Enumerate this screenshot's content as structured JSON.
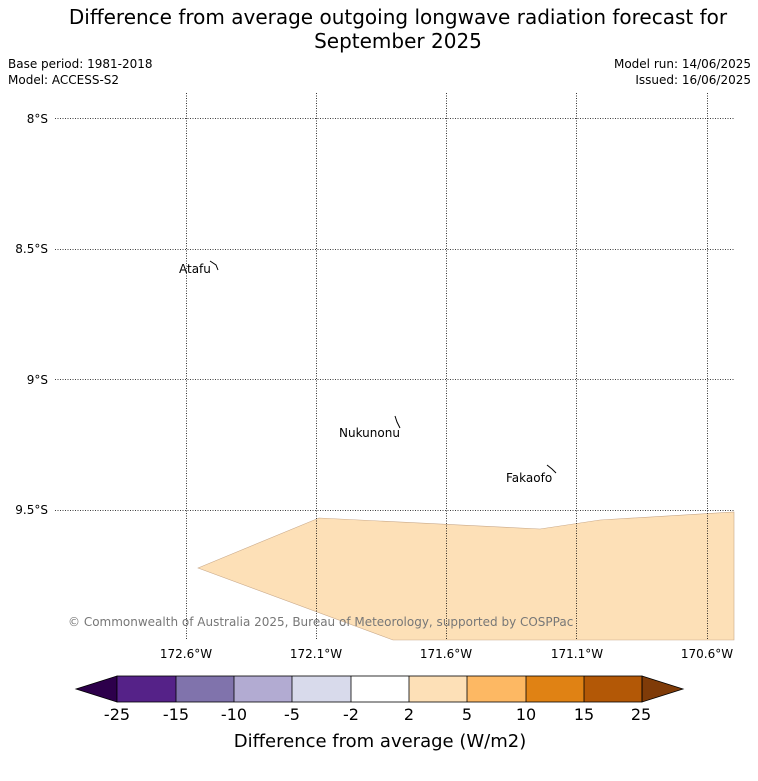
{
  "header": {
    "title_line1": "Difference from average outgoing longwave radiation forecast for",
    "title_line2": "September 2025",
    "base_period": "Base period: 1981-2018",
    "model": "Model: ACCESS-S2",
    "model_run": "Model run: 14/06/2025",
    "issued": "Issued: 16/06/2025"
  },
  "map": {
    "lat_ticks": [
      {
        "value": -8.0,
        "label": "8°S"
      },
      {
        "value": -8.5,
        "label": "8.5°S"
      },
      {
        "value": -9.0,
        "label": "9°S"
      },
      {
        "value": -9.5,
        "label": "9.5°S"
      }
    ],
    "lon_ticks": [
      {
        "value": -172.6,
        "label": "172.6°W"
      },
      {
        "value": -172.1,
        "label": "172.1°W"
      },
      {
        "value": -171.6,
        "label": "171.6°W"
      },
      {
        "value": -171.1,
        "label": "171.1°W"
      },
      {
        "value": -170.6,
        "label": "170.6°W"
      }
    ],
    "places": [
      {
        "name": "Atafu"
      },
      {
        "name": "Nukunonu"
      },
      {
        "name": "Fakaofo"
      }
    ],
    "anomaly_region": {
      "category": "2 to 5",
      "color": "#fde0b7"
    },
    "copyright": "© Commonwealth of Australia 2025, Bureau of Meteorology, supported by COSPPac"
  },
  "colorbar": {
    "label": "Difference from average (W/m2)",
    "ticks": [
      "-25",
      "-15",
      "-10",
      "-5",
      "-2",
      "2",
      "5",
      "10",
      "15",
      "25"
    ],
    "under_color": "#2d004b",
    "over_color": "#7f3b08",
    "colors": [
      "#552288",
      "#8073ac",
      "#b2abd2",
      "#d8daeb",
      "#ffffff",
      "#fde0b7",
      "#fdb863",
      "#e08214",
      "#b35806"
    ]
  }
}
